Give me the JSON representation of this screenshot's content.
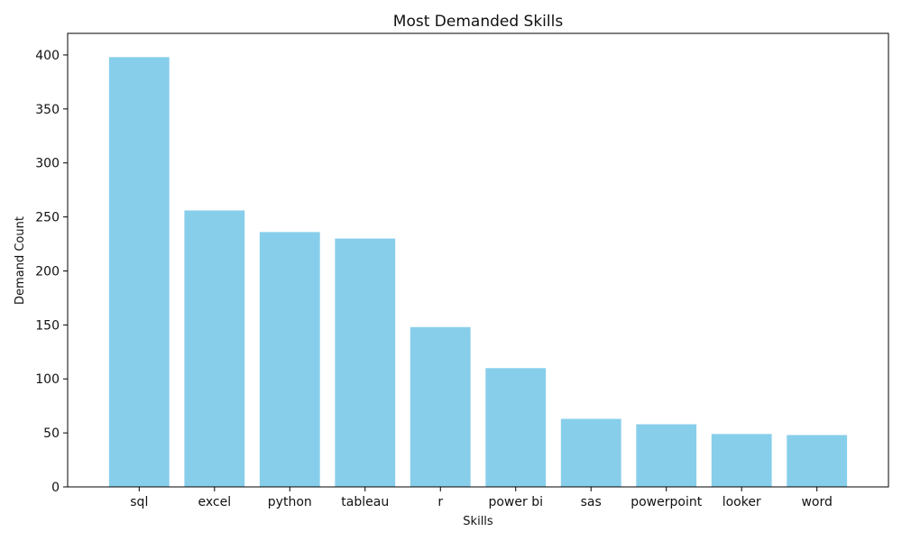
{
  "chart_data": {
    "type": "bar",
    "title": "Most Demanded Skills",
    "xlabel": "Skills",
    "ylabel": "Demand Count",
    "categories": [
      "sql",
      "excel",
      "python",
      "tableau",
      "r",
      "power bi",
      "sas",
      "powerpoint",
      "looker",
      "word"
    ],
    "values": [
      398,
      256,
      236,
      230,
      148,
      110,
      63,
      58,
      49,
      48
    ],
    "ylim": [
      0,
      420
    ],
    "yticks": [
      0,
      50,
      100,
      150,
      200,
      250,
      300,
      350,
      400
    ],
    "grid": false,
    "legend": "none",
    "bar_color": "#87CEEB"
  }
}
